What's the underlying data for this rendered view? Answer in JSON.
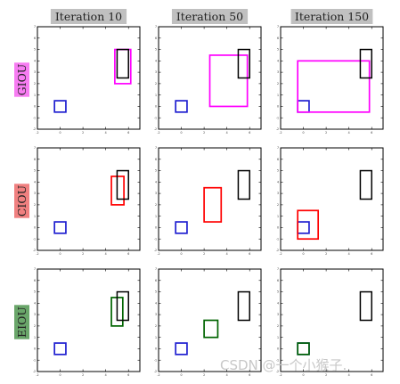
{
  "columns": [
    "Iteration 10",
    "Iteration 50",
    "Iteration 150"
  ],
  "rows": [
    {
      "label": "GIOU",
      "color": "#f77cf2"
    },
    {
      "label": "CIOU",
      "color": "#f08080"
    },
    {
      "label": "EIOU",
      "color": "#6aa66a"
    }
  ],
  "watermark": "CSDN @一个小猴子.",
  "chart_data": {
    "type": "other",
    "description": "3x3 grid of bounding-box regression snapshots; each panel shows a target box (black), an initial anchor box (blue) and the predicted box (colored by loss)",
    "xlim": [
      -2,
      7
    ],
    "ylim": [
      -2,
      7
    ],
    "x_ticks": [
      -2,
      0,
      2,
      4,
      6
    ],
    "y_ticks": [
      -2,
      -1,
      0,
      1,
      2,
      3,
      4,
      5,
      6,
      7
    ],
    "box_colors": {
      "target": "#000000",
      "anchor": "#1f1fd0",
      "GIOU": "#ff00ff",
      "CIOU": "#ff0000",
      "EIOU": "#006400"
    },
    "target_box": [
      5.0,
      2.5,
      6.0,
      5.0
    ],
    "anchor_box": [
      -0.5,
      -0.5,
      0.5,
      0.5
    ],
    "panels": [
      {
        "row": "GIOU",
        "column": "Iteration 10",
        "pred_box": [
          4.8,
          2.0,
          6.2,
          5.0
        ]
      },
      {
        "row": "GIOU",
        "column": "Iteration 50",
        "pred_box": [
          2.5,
          0.0,
          5.8,
          4.5
        ]
      },
      {
        "row": "GIOU",
        "column": "Iteration 150",
        "pred_box": [
          -0.5,
          -0.5,
          5.8,
          4.0
        ]
      },
      {
        "row": "CIOU",
        "column": "Iteration 10",
        "pred_box": [
          4.5,
          2.0,
          5.6,
          4.5
        ]
      },
      {
        "row": "CIOU",
        "column": "Iteration 50",
        "pred_box": [
          2.0,
          0.5,
          3.5,
          3.5
        ]
      },
      {
        "row": "CIOU",
        "column": "Iteration 150",
        "pred_box": [
          -0.5,
          -1.0,
          1.3,
          1.5
        ]
      },
      {
        "row": "EIOU",
        "column": "Iteration 10",
        "pred_box": [
          4.5,
          2.0,
          5.5,
          4.5
        ]
      },
      {
        "row": "EIOU",
        "column": "Iteration 50",
        "pred_box": [
          2.0,
          1.0,
          3.2,
          2.5
        ]
      },
      {
        "row": "EIOU",
        "column": "Iteration 150",
        "pred_box": [
          -0.5,
          -0.5,
          0.5,
          0.5
        ]
      }
    ]
  }
}
